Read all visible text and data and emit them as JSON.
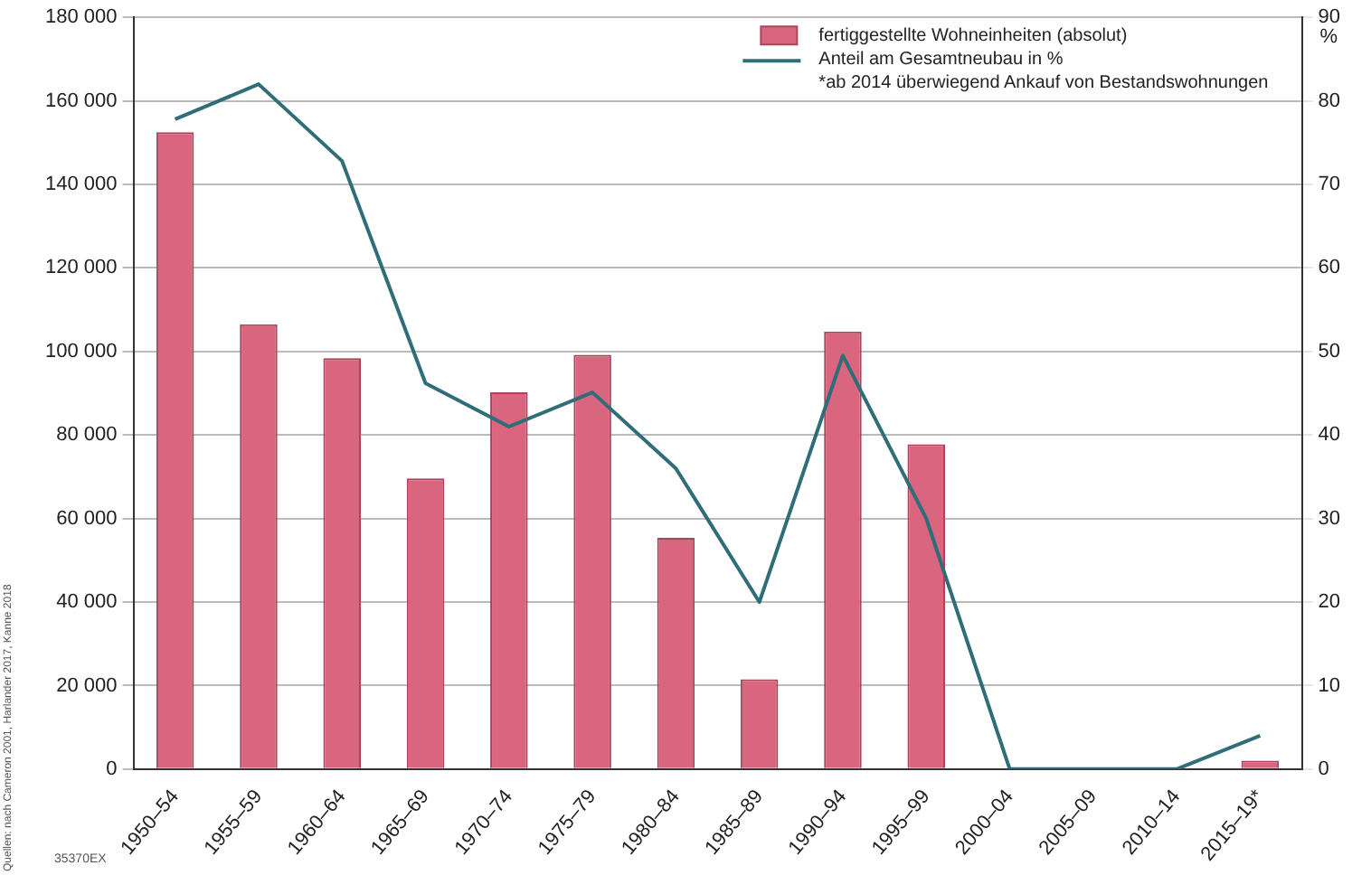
{
  "chart_data": {
    "type": "bar",
    "categories": [
      "1950–54",
      "1955–59",
      "1960–64",
      "1965–69",
      "1970–74",
      "1975–79",
      "1980–84",
      "1985–89",
      "1990–94",
      "1995–99",
      "2000–04",
      "2005–09",
      "2010–14",
      "2015–19*"
    ],
    "series": [
      {
        "name": "fertiggestellte Wohneinheiten (absolut)",
        "color": "#d9657e",
        "values": [
          152500,
          106500,
          98400,
          69600,
          90200,
          99200,
          55400,
          21500,
          104800,
          77800,
          0,
          0,
          0,
          2000
        ]
      },
      {
        "name": "Anteil am Gesamtneubau in %",
        "type": "line",
        "axis": "y2",
        "color": "#2f6e78",
        "values": [
          77.8,
          82,
          72.8,
          46.2,
          41,
          45.1,
          36,
          20,
          49.5,
          30,
          0,
          0,
          0,
          4
        ]
      }
    ],
    "ylim": [
      0,
      180000
    ],
    "yticks": [
      {
        "value": 0,
        "label": "0"
      },
      {
        "value": 20000,
        "label": "20 000"
      },
      {
        "value": 40000,
        "label": "40 000"
      },
      {
        "value": 60000,
        "label": "60 000"
      },
      {
        "value": 80000,
        "label": "80 000"
      },
      {
        "value": 100000,
        "label": "100 000"
      },
      {
        "value": 120000,
        "label": "120 000"
      },
      {
        "value": 140000,
        "label": "140 000"
      },
      {
        "value": 160000,
        "label": "160 000"
      },
      {
        "value": 180000,
        "label": "180 000"
      }
    ],
    "y2lim": [
      0,
      90
    ],
    "y2ticks": [
      0,
      10,
      20,
      30,
      40,
      50,
      60,
      70,
      80,
      90
    ],
    "y2label": "%",
    "grid": "y",
    "legend": "top right",
    "marker": "none",
    "annotations": [
      "*ab 2014 überwiegend Ankauf von Bestandswohnungen",
      "Quellen: nach Cameron 2001, Harlander 2017, Kanne 2018",
      "35370EX"
    ]
  }
}
